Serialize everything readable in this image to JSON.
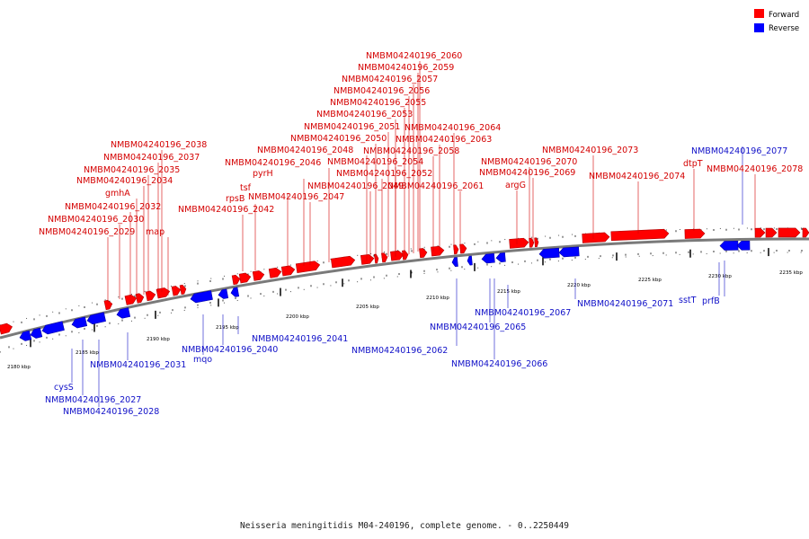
{
  "caption": "Neisseria meningitidis M04-240196, complete genome. - 0..2250449",
  "legend": [
    {
      "label": "Forward",
      "color": "#ff0000"
    },
    {
      "label": "Reverse",
      "color": "#0000ff"
    }
  ],
  "colors": {
    "forward": "#ff0000",
    "reverse": "#0000ff",
    "forward_label": "#d40000",
    "reverse_label": "#1010c8"
  },
  "scale_labels": [
    "2180 kbp",
    "2185 kbp",
    "2190 kbp",
    "2195 kbp",
    "2200 kbp",
    "2205 kbp",
    "2210 kbp",
    "2215 kbp",
    "2220 kbp",
    "2225 kbp",
    "2230 kbp",
    "2235 kbp"
  ],
  "forward_labels": [
    "NMBM04240196_2060",
    "NMBM04240196_2059",
    "NMBM04240196_2057",
    "NMBM04240196_2056",
    "NMBM04240196_2055",
    "NMBM04240196_2053",
    "NMBM04240196_2051",
    "NMBM04240196_2064",
    "NMBM04240196_2050",
    "NMBM04240196_2063",
    "NMBM04240196_2038",
    "NMBM04240196_2073",
    "NMBM04240196_2048",
    "NMBM04240196_2058",
    "NMBM04240196_2037",
    "NMBM04240196_2046",
    "NMBM04240196_2054",
    "NMBM04240196_2070",
    "dtpT",
    "NMBM04240196_2035",
    "pyrH",
    "NMBM04240196_2052",
    "NMBM04240196_2069",
    "NMBM04240196_2074",
    "NMBM04240196_2078",
    "NMBM04240196_2034",
    "tsf",
    "NMBM04240196_2049",
    "NMBM04240196_2061",
    "argG",
    "gmhA",
    "rpsB",
    "NMBM04240196_2047",
    "NMBM04240196_2032",
    "NMBM04240196_2042",
    "NMBM04240196_2030",
    "NMBM04240196_2029",
    "map"
  ],
  "reverse_labels": [
    "NMBM04240196_2077",
    "sstT",
    "prfB",
    "NMBM04240196_2071",
    "NMBM04240196_2067",
    "NMBM04240196_2065",
    "NMBM04240196_2041",
    "NMBM04240196_2062",
    "NMBM04240196_2040",
    "mqo",
    "NMBM04240196_2031",
    "NMBM04240196_2066",
    "cysS",
    "NMBM04240196_2027",
    "NMBM04240196_2028"
  ]
}
